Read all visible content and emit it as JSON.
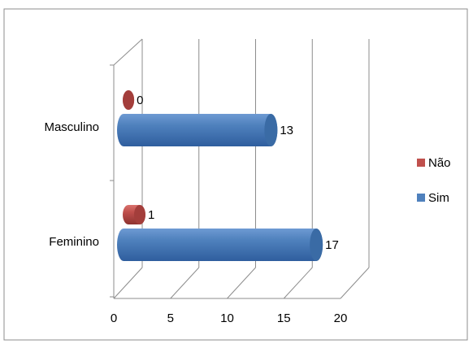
{
  "chart_data": {
    "type": "bar",
    "orientation": "horizontal",
    "three_d": true,
    "bar_shape": "cylinder",
    "categories": [
      "Masculino",
      "Feminino"
    ],
    "series": [
      {
        "name": "Não",
        "values": [
          0,
          1
        ],
        "color": "#C0504D"
      },
      {
        "name": "Sim",
        "values": [
          13,
          17
        ],
        "color": "#4F81BD"
      }
    ],
    "x_ticks": [
      "0",
      "5",
      "10",
      "15",
      "20"
    ],
    "xlim": [
      0,
      20
    ],
    "grid": true,
    "legend_position": "right",
    "data_labels": true
  }
}
